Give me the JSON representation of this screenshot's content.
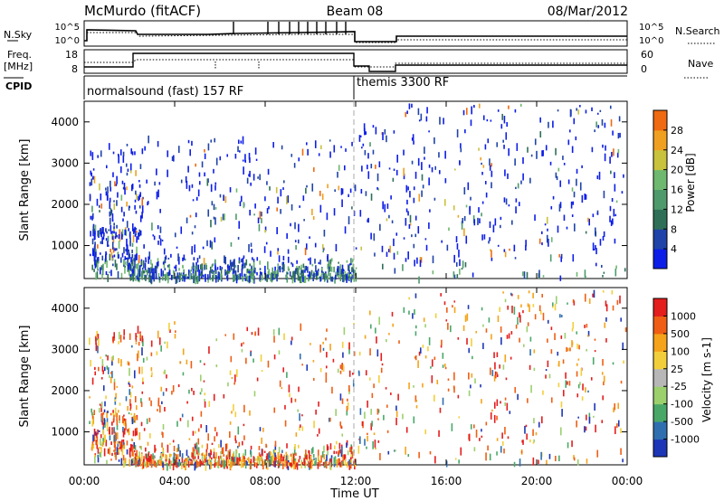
{
  "header": {
    "radar": "McMurdo (fitACF)",
    "beam": "Beam 08",
    "date": "08/Mar/2012"
  },
  "strips": {
    "nsky_label": "N.Sky",
    "nsearch_label": "N.Search",
    "freq_label_1": "Freq.",
    "freq_label_2": "[MHz]",
    "nave_label": "Nave",
    "cpid_label": "CPID",
    "left_ticks_top": [
      "10^5",
      "10^0"
    ],
    "right_ticks_top": [
      "10^5",
      "10^0"
    ],
    "freq_ticks": [
      "18",
      "8"
    ],
    "nave_ticks": [
      "60",
      "0"
    ]
  },
  "cpid_modes": [
    {
      "label": "normalsound (fast) 157 RF",
      "start_hour": 0
    },
    {
      "label": "themis 3300 RF",
      "start_hour": 12
    }
  ],
  "time_axis": {
    "label": "Time UT",
    "ticks": [
      "00:00",
      "04:00",
      "08:00",
      "12:00",
      "16:00",
      "20:00",
      "00:00"
    ]
  },
  "range_ticks": [
    "1000",
    "2000",
    "3000",
    "4000"
  ],
  "colors": {
    "power": [
      "#0c1de8",
      "#1f43a8",
      "#2f6f57",
      "#4f9a6b",
      "#6fb86f",
      "#c8c23c",
      "#f0a020",
      "#ef6a10",
      "#e32a14"
    ],
    "velocity": [
      "#e41d1d",
      "#ef5e14",
      "#f5a31a",
      "#f2cf3a",
      "#b7b7b7",
      "#9bd06d",
      "#49a868",
      "#2f6fb0",
      "#1d36b7"
    ]
  },
  "chart_data": [
    {
      "type": "heatmap",
      "title": "Power",
      "xlabel": "Time UT",
      "ylabel": "Slant Range [km]",
      "xlim": [
        0,
        24
      ],
      "ylim": [
        200,
        4500
      ],
      "colorbar_label": "Power [dB]",
      "colorbar_ticks": [
        "4",
        "8",
        "12",
        "16",
        "20",
        "24",
        "28"
      ],
      "colorbar_range": [
        0,
        32
      ]
    },
    {
      "type": "heatmap",
      "title": "Velocity",
      "xlabel": "Time UT",
      "ylabel": "Slant Range [km]",
      "xlim": [
        0,
        24
      ],
      "ylim": [
        200,
        4500
      ],
      "colorbar_label": "Velocity [m s-1]",
      "colorbar_ticks": [
        "1000",
        "500",
        "100",
        "25",
        "-25",
        "-100",
        "-500",
        "-1000"
      ]
    }
  ]
}
